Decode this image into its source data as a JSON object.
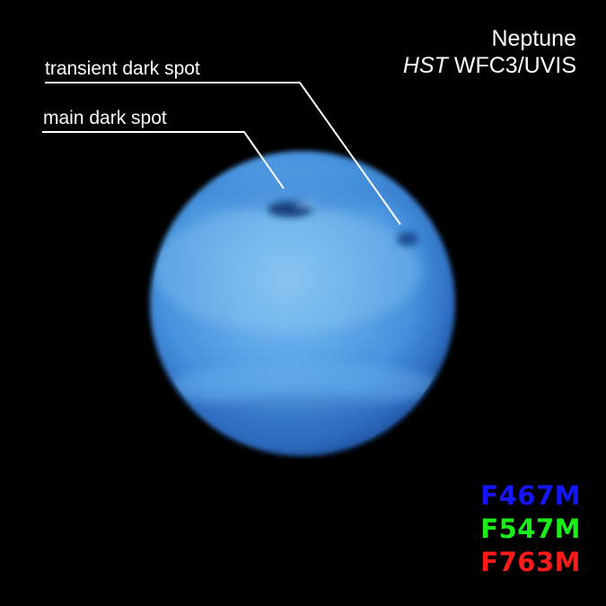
{
  "title": {
    "target": "Neptune",
    "telescope": "HST",
    "instrument": "WFC3/UVIS"
  },
  "annotations": {
    "transient_dark_spot": "transient dark spot",
    "main_dark_spot": "main dark spot"
  },
  "filters": [
    {
      "name": "F467M",
      "color": "#1515ff"
    },
    {
      "name": "F547M",
      "color": "#19ee19"
    },
    {
      "name": "F763M",
      "color": "#ff1a1a"
    }
  ],
  "colors": {
    "background": "#000000",
    "planet": "#5aa6e8",
    "annotation_line": "#ffffff"
  }
}
